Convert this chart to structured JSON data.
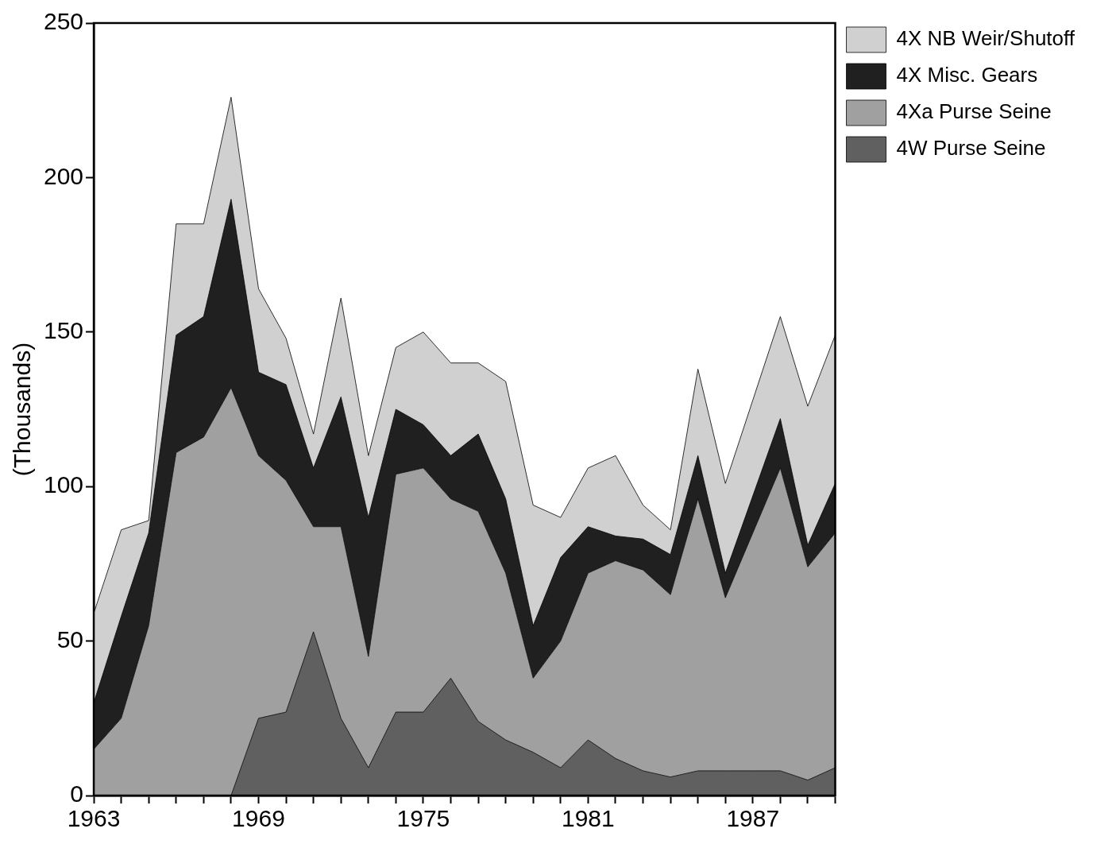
{
  "chart_data": {
    "type": "area",
    "stacked": true,
    "ylabel": "(Thousands)",
    "x": [
      1963,
      1964,
      1965,
      1966,
      1967,
      1968,
      1969,
      1970,
      1971,
      1972,
      1973,
      1974,
      1975,
      1976,
      1977,
      1978,
      1979,
      1980,
      1981,
      1982,
      1983,
      1984,
      1985,
      1986,
      1987,
      1988,
      1989,
      1990
    ],
    "series": [
      {
        "name": "4W Purse Seine",
        "color": "#606060",
        "values": [
          0,
          0,
          0,
          0,
          0,
          0,
          25,
          27,
          53,
          25,
          9,
          27,
          27,
          38,
          24,
          18,
          14,
          9,
          18,
          12,
          8,
          6,
          8,
          8,
          8,
          8,
          5,
          9
        ]
      },
      {
        "name": "4Xa Purse Seine",
        "color": "#a0a0a0",
        "values": [
          15,
          25,
          55,
          111,
          116,
          132,
          85,
          75,
          34,
          62,
          36,
          77,
          79,
          58,
          68,
          54,
          24,
          41,
          54,
          64,
          65,
          59,
          88,
          56,
          77,
          98,
          69,
          76
        ]
      },
      {
        "name": "4X Misc. Gears",
        "color": "#202020",
        "values": [
          15,
          33,
          30,
          38,
          39,
          61,
          27,
          31,
          19,
          42,
          45,
          21,
          14,
          14,
          25,
          24,
          17,
          27,
          15,
          8,
          10,
          13,
          14,
          8,
          12,
          16,
          7,
          16
        ]
      },
      {
        "name": "4X NB Weir/Shutoff",
        "color": "#d0d0d0",
        "values": [
          29,
          28,
          4,
          36,
          30,
          33,
          27,
          15,
          11,
          32,
          20,
          20,
          30,
          30,
          23,
          38,
          39,
          13,
          19,
          26,
          11,
          8,
          28,
          29,
          31,
          33,
          45,
          48
        ]
      }
    ],
    "xlim": [
      1963,
      1990
    ],
    "xticks": [
      1963,
      {
        "value": 1964,
        "label": null
      },
      {
        "value": 1965,
        "label": null
      },
      {
        "value": 1966,
        "label": null
      },
      {
        "value": 1967,
        "label": null
      },
      {
        "value": 1968,
        "label": null
      },
      1969,
      {
        "value": 1970,
        "label": null
      },
      {
        "value": 1971,
        "label": null
      },
      {
        "value": 1972,
        "label": null
      },
      {
        "value": 1973,
        "label": null
      },
      {
        "value": 1974,
        "label": null
      },
      1975,
      {
        "value": 1976,
        "label": null
      },
      {
        "value": 1977,
        "label": null
      },
      {
        "value": 1978,
        "label": null
      },
      {
        "value": 1979,
        "label": null
      },
      {
        "value": 1980,
        "label": null
      },
      1981,
      {
        "value": 1982,
        "label": null
      },
      {
        "value": 1983,
        "label": null
      },
      {
        "value": 1984,
        "label": null
      },
      {
        "value": 1985,
        "label": null
      },
      {
        "value": 1986,
        "label": null
      },
      1987,
      {
        "value": 1988,
        "label": null
      },
      {
        "value": 1989,
        "label": null
      },
      {
        "value": 1990,
        "label": null
      }
    ],
    "ylim": [
      0,
      250
    ],
    "yticks": [
      0,
      50,
      100,
      150,
      200,
      250
    ],
    "grid": false,
    "legend": "right"
  }
}
